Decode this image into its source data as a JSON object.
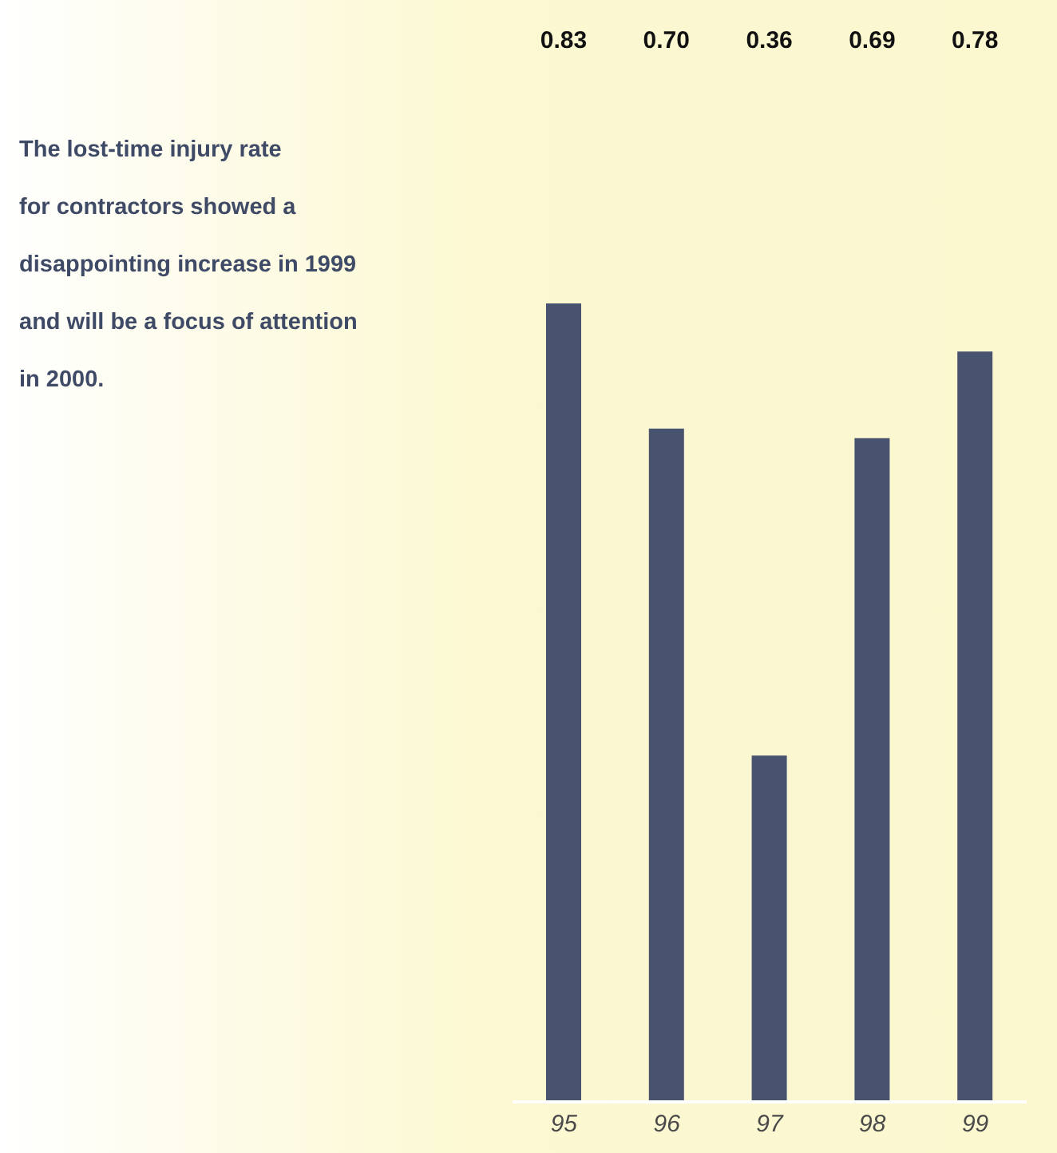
{
  "chart_data": {
    "type": "bar",
    "annotations": [
      "The lost-time injury rate",
      "for contractors showed a",
      "disappointing increase in 1999",
      "and will be a focus of attention",
      "in 2000."
    ],
    "categories": [
      "95",
      "96",
      "97",
      "98",
      "99"
    ],
    "values": [
      0.83,
      0.7,
      0.36,
      0.69,
      0.78
    ],
    "value_labels": [
      "0.83",
      "0.70",
      "0.36",
      "0.69",
      "0.78"
    ],
    "color": "#48536f"
  }
}
